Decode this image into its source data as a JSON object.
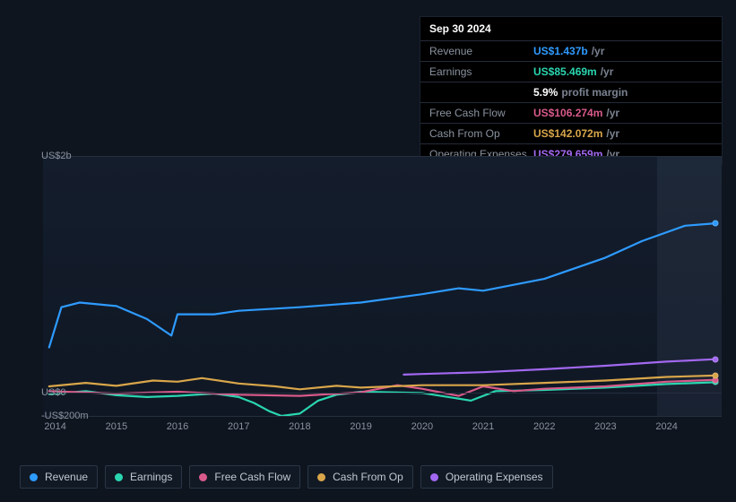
{
  "tooltip": {
    "date": "Sep 30 2024",
    "rows": [
      {
        "label": "Revenue",
        "value": "US$1.437b",
        "suffix": "/yr",
        "color": "#2e9bff"
      },
      {
        "label": "Earnings",
        "value": "US$85.469m",
        "suffix": "/yr",
        "color": "#2ad6b0"
      },
      {
        "label": "",
        "value": "5.9%",
        "suffix": "profit margin",
        "color": "#ffffff"
      },
      {
        "label": "Free Cash Flow",
        "value": "US$106.274m",
        "suffix": "/yr",
        "color": "#d95a8a"
      },
      {
        "label": "Cash From Op",
        "value": "US$142.072m",
        "suffix": "/yr",
        "color": "#d9a64a"
      },
      {
        "label": "Operating Expenses",
        "value": "US$279.659m",
        "suffix": "/yr",
        "color": "#a268f0"
      }
    ]
  },
  "chart": {
    "type": "line",
    "background_gradient": [
      "#141d2c",
      "#0f1724"
    ],
    "grid_color": "#252e3d",
    "x": {
      "min": 2013.8,
      "max": 2024.9,
      "ticks": [
        2014,
        2015,
        2016,
        2017,
        2018,
        2019,
        2020,
        2021,
        2022,
        2023,
        2024
      ]
    },
    "y": {
      "min": -200,
      "max": 2000,
      "ticks": [
        {
          "v": 2000,
          "label": "US$2b"
        },
        {
          "v": 0,
          "label": "US$0"
        },
        {
          "v": -200,
          "label": "-US$200m"
        }
      ]
    },
    "future_band_start": 2023.85,
    "line_width": 2.2,
    "series": [
      {
        "name": "Revenue",
        "color": "#2e9bff",
        "x": [
          2013.9,
          2014.1,
          2014.4,
          2015.0,
          2015.5,
          2015.9,
          2016.0,
          2016.6,
          2017.0,
          2018.0,
          2019.0,
          2020.0,
          2020.6,
          2021.0,
          2022.0,
          2023.0,
          2023.6,
          2024.3,
          2024.8
        ],
        "y": [
          380,
          720,
          760,
          730,
          620,
          480,
          660,
          660,
          690,
          720,
          760,
          830,
          880,
          860,
          960,
          1140,
          1280,
          1410,
          1430
        ]
      },
      {
        "name": "Earnings",
        "color": "#2ad6b0",
        "x": [
          2013.9,
          2014.5,
          2015.0,
          2015.5,
          2016.0,
          2016.6,
          2017.0,
          2017.25,
          2017.5,
          2017.7,
          2018.0,
          2018.3,
          2018.6,
          2019.0,
          2020.0,
          2020.8,
          2021.2,
          2022.0,
          2023.0,
          2024.0,
          2024.8
        ],
        "y": [
          -15,
          10,
          -25,
          -40,
          -30,
          -10,
          -40,
          -90,
          -160,
          -200,
          -180,
          -70,
          -20,
          5,
          -5,
          -70,
          10,
          20,
          40,
          70,
          85
        ]
      },
      {
        "name": "Free Cash Flow",
        "color": "#d95a8a",
        "x": [
          2013.9,
          2015.0,
          2016.0,
          2017.0,
          2018.0,
          2019.0,
          2019.6,
          2020.0,
          2020.6,
          2021.0,
          2021.5,
          2022.0,
          2023.0,
          2024.0,
          2024.8
        ],
        "y": [
          10,
          -10,
          5,
          -20,
          -30,
          0,
          60,
          30,
          -30,
          50,
          10,
          30,
          50,
          90,
          106
        ]
      },
      {
        "name": "Cash From Op",
        "color": "#d9a64a",
        "x": [
          2013.9,
          2014.5,
          2015.0,
          2015.6,
          2016.0,
          2016.4,
          2017.0,
          2017.6,
          2018.0,
          2018.6,
          2019.0,
          2020.0,
          2021.0,
          2022.0,
          2023.0,
          2024.0,
          2024.8
        ],
        "y": [
          50,
          80,
          55,
          100,
          90,
          120,
          75,
          50,
          25,
          55,
          40,
          60,
          60,
          80,
          100,
          130,
          142
        ]
      },
      {
        "name": "Operating Expenses",
        "color": "#a268f0",
        "x": [
          2019.7,
          2020.0,
          2021.0,
          2022.0,
          2023.0,
          2024.0,
          2024.8
        ],
        "y": [
          150,
          155,
          170,
          195,
          225,
          260,
          280
        ]
      }
    ]
  },
  "legend": [
    {
      "label": "Revenue",
      "color": "#2e9bff"
    },
    {
      "label": "Earnings",
      "color": "#2ad6b0"
    },
    {
      "label": "Free Cash Flow",
      "color": "#d95a8a"
    },
    {
      "label": "Cash From Op",
      "color": "#d9a64a"
    },
    {
      "label": "Operating Expenses",
      "color": "#a268f0"
    }
  ]
}
